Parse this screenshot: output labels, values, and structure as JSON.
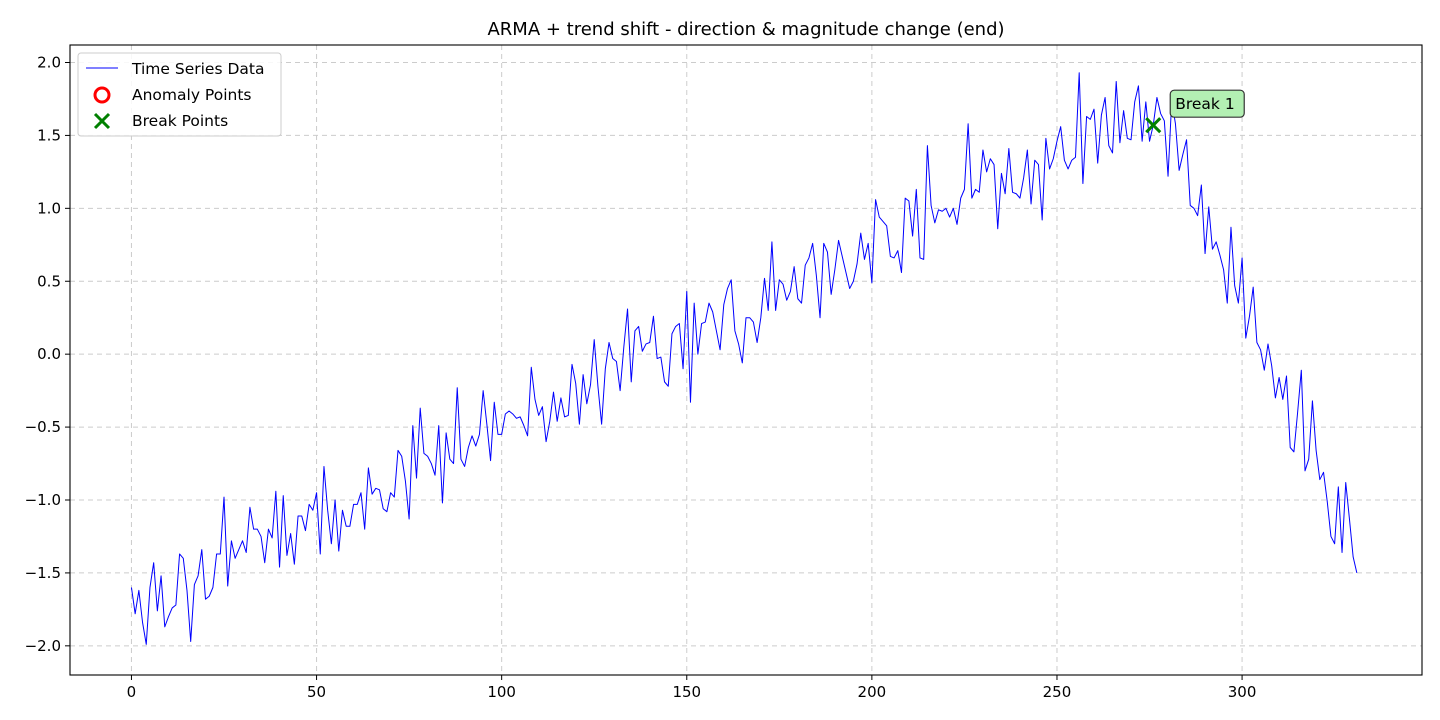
{
  "chart_data": {
    "type": "line",
    "title": "ARMA + trend shift - direction & magnitude change (end)",
    "xlabel": "",
    "ylabel": "",
    "xlim": [
      -16.6,
      348.6
    ],
    "ylim": [
      -2.2,
      2.12
    ],
    "x_ticks": [
      0,
      50,
      100,
      150,
      200,
      250,
      300
    ],
    "y_ticks": [
      -2.0,
      -1.5,
      -1.0,
      -0.5,
      0.0,
      0.5,
      1.0,
      1.5,
      2.0
    ],
    "x_tick_labels": [
      "0",
      "50",
      "100",
      "150",
      "200",
      "250",
      "300"
    ],
    "y_tick_labels": [
      "−2.0",
      "−1.5",
      "−1.0",
      "−0.5",
      "0.0",
      "0.5",
      "1.0",
      "1.5",
      "2.0"
    ],
    "grid": true,
    "legend_position": "top-left",
    "colors": {
      "series": "#0000ff",
      "anomaly": "#ff0000",
      "break": "#008000",
      "annotation_bg": "#b3f0b3",
      "grid": "#cccccc"
    },
    "legend": [
      {
        "label": "Time Series Data",
        "marker": "line"
      },
      {
        "label": "Anomaly Points",
        "marker": "circle"
      },
      {
        "label": "Break Points",
        "marker": "x"
      }
    ],
    "series": [
      {
        "name": "Time Series Data",
        "x_start": 0,
        "x_step": 1,
        "values": [
          -1.6,
          -1.78,
          -1.62,
          -1.84,
          -1.99,
          -1.6,
          -1.43,
          -1.76,
          -1.52,
          -1.87,
          -1.8,
          -1.74,
          -1.72,
          -1.37,
          -1.4,
          -1.62,
          -1.97,
          -1.58,
          -1.52,
          -1.34,
          -1.68,
          -1.66,
          -1.6,
          -1.37,
          -1.37,
          -0.98,
          -1.59,
          -1.28,
          -1.4,
          -1.34,
          -1.28,
          -1.36,
          -1.05,
          -1.2,
          -1.2,
          -1.25,
          -1.43,
          -1.2,
          -1.26,
          -0.94,
          -1.46,
          -0.97,
          -1.38,
          -1.23,
          -1.44,
          -1.11,
          -1.11,
          -1.21,
          -1.03,
          -1.07,
          -0.95,
          -1.37,
          -0.77,
          -1.07,
          -1.3,
          -1.0,
          -1.35,
          -1.07,
          -1.18,
          -1.18,
          -1.03,
          -1.03,
          -0.95,
          -1.2,
          -0.78,
          -0.96,
          -0.92,
          -0.93,
          -1.06,
          -1.08,
          -0.95,
          -0.98,
          -0.66,
          -0.7,
          -0.87,
          -1.13,
          -0.49,
          -0.85,
          -0.37,
          -0.68,
          -0.7,
          -0.75,
          -0.83,
          -0.49,
          -1.02,
          -0.54,
          -0.72,
          -0.75,
          -0.23,
          -0.72,
          -0.77,
          -0.64,
          -0.56,
          -0.63,
          -0.55,
          -0.25,
          -0.48,
          -0.73,
          -0.33,
          -0.55,
          -0.55,
          -0.41,
          -0.39,
          -0.41,
          -0.44,
          -0.43,
          -0.49,
          -0.56,
          -0.09,
          -0.31,
          -0.42,
          -0.36,
          -0.6,
          -0.46,
          -0.26,
          -0.46,
          -0.3,
          -0.43,
          -0.42,
          -0.07,
          -0.2,
          -0.48,
          -0.14,
          -0.34,
          -0.21,
          0.1,
          -0.22,
          -0.48,
          -0.1,
          0.08,
          -0.03,
          -0.05,
          -0.25,
          0.05,
          0.31,
          -0.19,
          0.16,
          0.19,
          0.02,
          0.07,
          0.08,
          0.26,
          -0.03,
          -0.02,
          -0.19,
          -0.22,
          0.14,
          0.19,
          0.21,
          -0.1,
          0.43,
          -0.33,
          0.35,
          0.0,
          0.21,
          0.22,
          0.35,
          0.29,
          0.16,
          0.03,
          0.34,
          0.45,
          0.51,
          0.16,
          0.07,
          -0.06,
          0.25,
          0.25,
          0.22,
          0.08,
          0.25,
          0.52,
          0.3,
          0.77,
          0.3,
          0.51,
          0.48,
          0.37,
          0.43,
          0.6,
          0.38,
          0.35,
          0.61,
          0.66,
          0.76,
          0.54,
          0.25,
          0.76,
          0.7,
          0.41,
          0.58,
          0.78,
          0.67,
          0.56,
          0.45,
          0.5,
          0.62,
          0.83,
          0.65,
          0.76,
          0.49,
          1.06,
          0.94,
          0.91,
          0.88,
          0.67,
          0.66,
          0.71,
          0.56,
          1.07,
          1.05,
          0.81,
          1.13,
          0.66,
          0.65,
          1.43,
          1.02,
          0.9,
          0.99,
          0.98,
          1.0,
          0.94,
          1.0,
          0.89,
          1.07,
          1.13,
          1.58,
          1.07,
          1.13,
          1.11,
          1.4,
          1.25,
          1.34,
          1.3,
          0.86,
          1.24,
          1.1,
          1.41,
          1.11,
          1.1,
          1.07,
          1.21,
          1.4,
          1.03,
          1.33,
          1.3,
          0.92,
          1.48,
          1.27,
          1.34,
          1.46,
          1.56,
          1.33,
          1.27,
          1.33,
          1.35,
          1.93,
          1.17,
          1.63,
          1.61,
          1.68,
          1.31,
          1.64,
          1.76,
          1.43,
          1.38,
          1.87,
          1.45,
          1.67,
          1.48,
          1.47,
          1.73,
          1.84,
          1.46,
          1.73,
          1.46,
          1.57,
          1.76,
          1.65,
          1.6,
          1.22,
          1.74,
          1.58,
          1.26,
          1.37,
          1.47,
          1.02,
          1.0,
          0.95,
          1.16,
          0.69,
          1.01,
          0.72,
          0.77,
          0.68,
          0.58,
          0.35,
          0.87,
          0.47,
          0.35,
          0.66,
          0.11,
          0.26,
          0.46,
          0.08,
          0.03,
          -0.11,
          0.07,
          -0.08,
          -0.3,
          -0.16,
          -0.31,
          -0.15,
          -0.64,
          -0.67,
          -0.4,
          -0.11,
          -0.8,
          -0.72,
          -0.32,
          -0.66,
          -0.86,
          -0.81,
          -1.01,
          -1.25,
          -1.3,
          -0.91,
          -1.36,
          -0.88,
          -1.13,
          -1.39,
          -1.5
        ]
      }
    ],
    "anomaly_points": [],
    "break_points": [
      {
        "x": 276,
        "y": 1.57
      }
    ],
    "annotations": [
      {
        "text": "Break 1",
        "x": 276,
        "y": 1.57
      }
    ]
  }
}
